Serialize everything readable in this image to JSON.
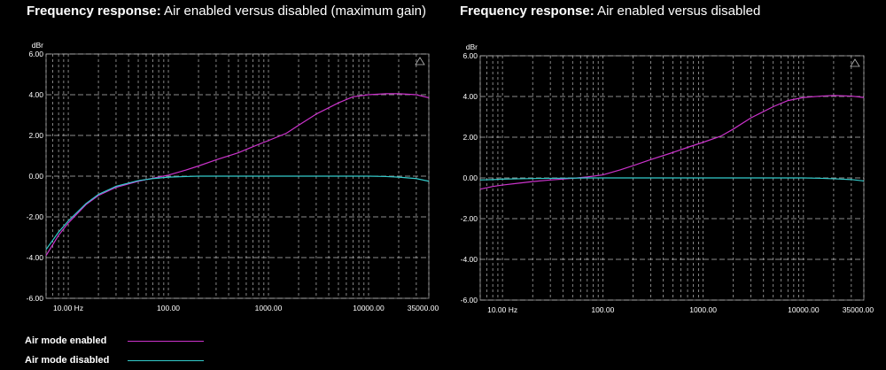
{
  "panels": [
    {
      "title_bold": "Frequency response:",
      "title_rest": " Air enabled versus disabled (maximum gain)"
    },
    {
      "title_bold": "Frequency response:",
      "title_rest": " Air enabled versus disabled"
    }
  ],
  "legend": [
    {
      "label": "Air mode enabled",
      "color": "#cc33cc"
    },
    {
      "label": "Air mode disabled",
      "color": "#33cccc"
    }
  ],
  "chart_data": [
    {
      "type": "line",
      "title": "Frequency response: Air enabled versus disabled (maximum gain)",
      "ylabel": "dBr",
      "xscale": "log",
      "xlim": [
        6,
        40000
      ],
      "ylim": [
        -6,
        6
      ],
      "yticks": [
        "6.00",
        "4.00",
        "2.00",
        "0.00",
        "-2.00",
        "-4.00",
        "-6.00"
      ],
      "xticks": [
        {
          "v": 10,
          "label": "10.00 Hz"
        },
        {
          "v": 100,
          "label": "100.00"
        },
        {
          "v": 1000,
          "label": "1000.00"
        },
        {
          "v": 10000,
          "label": "10000.00"
        },
        {
          "v": 35000,
          "label": "35000.00"
        }
      ],
      "grid": true,
      "series": [
        {
          "name": "Air mode enabled",
          "color": "#cc33cc",
          "x": [
            6,
            8,
            10,
            15,
            20,
            30,
            50,
            70,
            100,
            150,
            200,
            300,
            500,
            700,
            1000,
            1500,
            2000,
            3000,
            5000,
            7000,
            10000,
            15000,
            20000,
            30000,
            40000
          ],
          "y": [
            -3.9,
            -2.9,
            -2.3,
            -1.4,
            -0.95,
            -0.55,
            -0.25,
            -0.1,
            0.05,
            0.3,
            0.5,
            0.8,
            1.15,
            1.45,
            1.75,
            2.1,
            2.5,
            3.05,
            3.6,
            3.9,
            4.0,
            4.05,
            4.05,
            4.0,
            3.85
          ]
        },
        {
          "name": "Air mode disabled",
          "color": "#33cccc",
          "x": [
            6,
            8,
            10,
            15,
            20,
            30,
            50,
            70,
            100,
            150,
            200,
            300,
            500,
            700,
            1000,
            1500,
            2000,
            3000,
            5000,
            7000,
            10000,
            15000,
            20000,
            30000,
            40000
          ],
          "y": [
            -3.6,
            -2.75,
            -2.2,
            -1.35,
            -0.9,
            -0.5,
            -0.22,
            -0.12,
            -0.05,
            -0.02,
            0,
            0,
            0,
            0,
            0,
            0,
            0,
            0,
            0,
            0,
            0,
            -0.02,
            -0.05,
            -0.12,
            -0.25
          ]
        }
      ]
    },
    {
      "type": "line",
      "title": "Frequency response: Air enabled versus disabled",
      "ylabel": "dBr",
      "xscale": "log",
      "xlim": [
        6,
        40000
      ],
      "ylim": [
        -6,
        6
      ],
      "yticks": [
        "6.00",
        "4.00",
        "2.00",
        "0.00",
        "-2.00",
        "-4.00",
        "-6.00"
      ],
      "xticks": [
        {
          "v": 10,
          "label": "10.00 Hz"
        },
        {
          "v": 100,
          "label": "100.00"
        },
        {
          "v": 1000,
          "label": "1000.00"
        },
        {
          "v": 10000,
          "label": "10000.00"
        },
        {
          "v": 35000,
          "label": "35000.00"
        }
      ],
      "grid": true,
      "series": [
        {
          "name": "Air mode enabled",
          "color": "#cc33cc",
          "x": [
            6,
            8,
            10,
            15,
            20,
            30,
            50,
            70,
            100,
            150,
            200,
            300,
            500,
            700,
            1000,
            1500,
            2000,
            3000,
            5000,
            7000,
            10000,
            15000,
            20000,
            30000,
            40000
          ],
          "y": [
            -0.55,
            -0.42,
            -0.35,
            -0.25,
            -0.18,
            -0.1,
            -0.02,
            0.05,
            0.15,
            0.4,
            0.6,
            0.9,
            1.25,
            1.5,
            1.75,
            2.05,
            2.4,
            2.95,
            3.5,
            3.8,
            3.95,
            4.02,
            4.05,
            4.02,
            3.95
          ]
        },
        {
          "name": "Air mode disabled",
          "color": "#33cccc",
          "x": [
            6,
            8,
            10,
            15,
            20,
            30,
            50,
            70,
            100,
            200,
            500,
            1000,
            2000,
            5000,
            10000,
            15000,
            20000,
            30000,
            40000
          ],
          "y": [
            -0.1,
            -0.08,
            -0.06,
            -0.04,
            -0.03,
            -0.02,
            -0.01,
            0,
            0,
            0,
            0,
            0,
            0,
            0,
            0,
            -0.02,
            -0.04,
            -0.08,
            -0.15
          ]
        }
      ]
    }
  ]
}
